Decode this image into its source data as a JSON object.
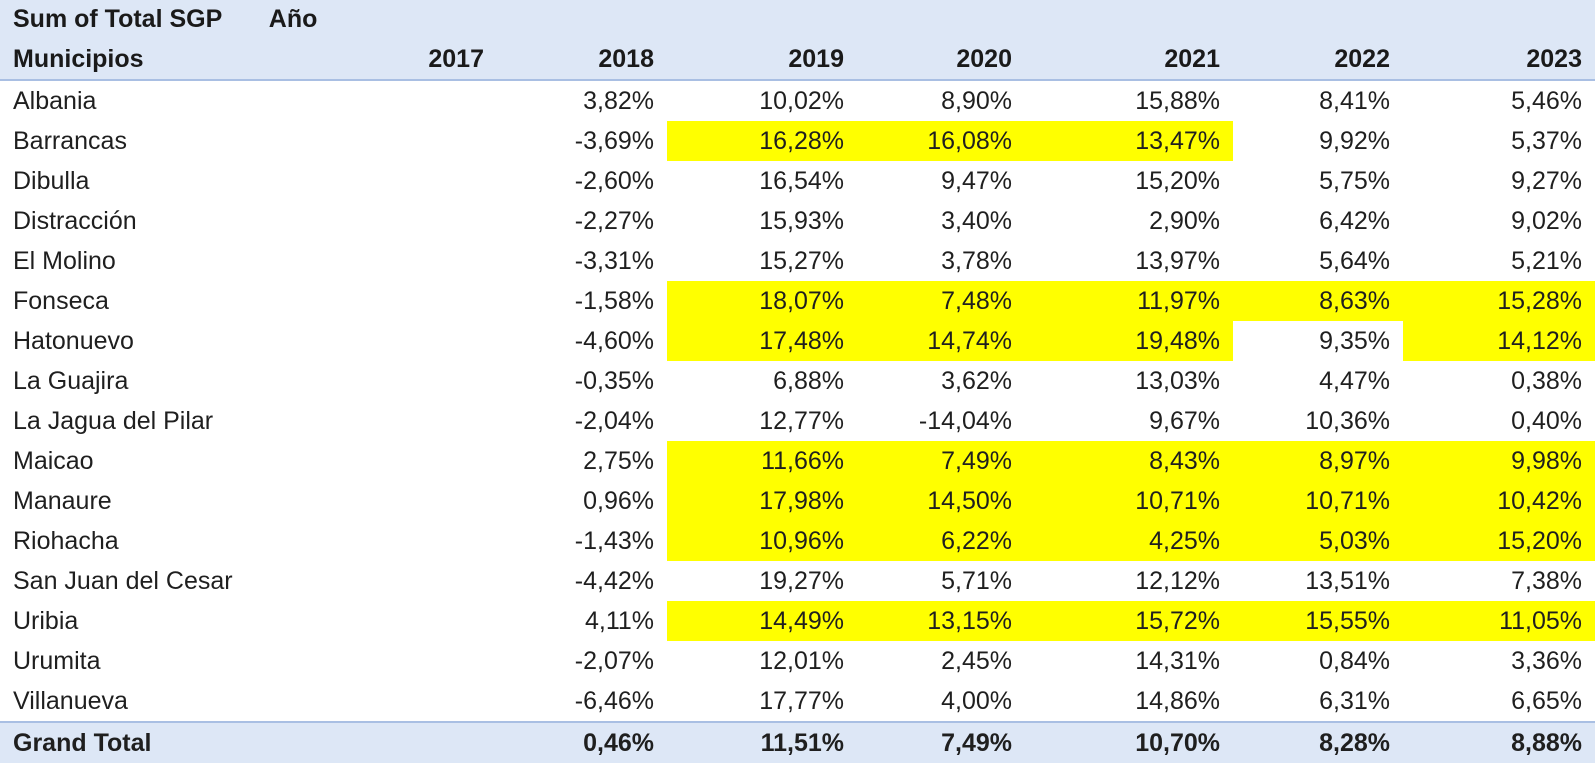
{
  "pivot": {
    "measure_label": "Sum of Total SGP",
    "column_field_label": "Año",
    "row_field_label": "Municipios",
    "highlight_color": "#ffff00",
    "header_color": "#dde7f6",
    "years": [
      "2017",
      "2018",
      "2019",
      "2020",
      "2021",
      "2022",
      "2023"
    ],
    "rows": [
      {
        "name": "Albania",
        "values": [
          "",
          "3,82%",
          "10,02%",
          "8,90%",
          "15,88%",
          "8,41%",
          "5,46%"
        ],
        "highlight": [
          false,
          false,
          false,
          false,
          false,
          false,
          false
        ]
      },
      {
        "name": "Barrancas",
        "values": [
          "",
          "-3,69%",
          "16,28%",
          "16,08%",
          "13,47%",
          "9,92%",
          "5,37%"
        ],
        "highlight": [
          false,
          false,
          true,
          true,
          true,
          false,
          false
        ]
      },
      {
        "name": "Dibulla",
        "values": [
          "",
          "-2,60%",
          "16,54%",
          "9,47%",
          "15,20%",
          "5,75%",
          "9,27%"
        ],
        "highlight": [
          false,
          false,
          false,
          false,
          false,
          false,
          false
        ]
      },
      {
        "name": "Distracción",
        "values": [
          "",
          "-2,27%",
          "15,93%",
          "3,40%",
          "2,90%",
          "6,42%",
          "9,02%"
        ],
        "highlight": [
          false,
          false,
          false,
          false,
          false,
          false,
          false
        ]
      },
      {
        "name": "El Molino",
        "values": [
          "",
          "-3,31%",
          "15,27%",
          "3,78%",
          "13,97%",
          "5,64%",
          "5,21%"
        ],
        "highlight": [
          false,
          false,
          false,
          false,
          false,
          false,
          false
        ]
      },
      {
        "name": "Fonseca",
        "values": [
          "",
          "-1,58%",
          "18,07%",
          "7,48%",
          "11,97%",
          "8,63%",
          "15,28%"
        ],
        "highlight": [
          false,
          false,
          true,
          true,
          true,
          true,
          true
        ]
      },
      {
        "name": "Hatonuevo",
        "values": [
          "",
          "-4,60%",
          "17,48%",
          "14,74%",
          "19,48%",
          "9,35%",
          "14,12%"
        ],
        "highlight": [
          false,
          false,
          true,
          true,
          true,
          false,
          true
        ]
      },
      {
        "name": "La Guajira",
        "values": [
          "",
          "-0,35%",
          "6,88%",
          "3,62%",
          "13,03%",
          "4,47%",
          "0,38%"
        ],
        "highlight": [
          false,
          false,
          false,
          false,
          false,
          false,
          false
        ]
      },
      {
        "name": "La Jagua del Pilar",
        "values": [
          "",
          "-2,04%",
          "12,77%",
          "-14,04%",
          "9,67%",
          "10,36%",
          "0,40%"
        ],
        "highlight": [
          false,
          false,
          false,
          false,
          false,
          false,
          false
        ]
      },
      {
        "name": "Maicao",
        "values": [
          "",
          "2,75%",
          "11,66%",
          "7,49%",
          "8,43%",
          "8,97%",
          "9,98%"
        ],
        "highlight": [
          false,
          false,
          true,
          true,
          true,
          true,
          true
        ]
      },
      {
        "name": "Manaure",
        "values": [
          "",
          "0,96%",
          "17,98%",
          "14,50%",
          "10,71%",
          "10,71%",
          "10,42%"
        ],
        "highlight": [
          false,
          false,
          true,
          true,
          true,
          true,
          true
        ]
      },
      {
        "name": "Riohacha",
        "values": [
          "",
          "-1,43%",
          "10,96%",
          "6,22%",
          "4,25%",
          "5,03%",
          "15,20%"
        ],
        "highlight": [
          false,
          false,
          true,
          true,
          true,
          true,
          true
        ]
      },
      {
        "name": "San Juan del Cesar",
        "values": [
          "",
          "-4,42%",
          "19,27%",
          "5,71%",
          "12,12%",
          "13,51%",
          "7,38%"
        ],
        "highlight": [
          false,
          false,
          false,
          false,
          false,
          false,
          false
        ]
      },
      {
        "name": "Uribia",
        "values": [
          "",
          "4,11%",
          "14,49%",
          "13,15%",
          "15,72%",
          "15,55%",
          "11,05%"
        ],
        "highlight": [
          false,
          false,
          true,
          true,
          true,
          true,
          true
        ]
      },
      {
        "name": "Urumita",
        "values": [
          "",
          "-2,07%",
          "12,01%",
          "2,45%",
          "14,31%",
          "0,84%",
          "3,36%"
        ],
        "highlight": [
          false,
          false,
          false,
          false,
          false,
          false,
          false
        ]
      },
      {
        "name": "Villanueva",
        "values": [
          "",
          "-6,46%",
          "17,77%",
          "4,00%",
          "14,86%",
          "6,31%",
          "6,65%"
        ],
        "highlight": [
          false,
          false,
          false,
          false,
          false,
          false,
          false
        ]
      }
    ],
    "grand_total": {
      "label": "Grand Total",
      "values": [
        "",
        "0,46%",
        "11,51%",
        "7,49%",
        "10,70%",
        "8,28%",
        "8,88%"
      ]
    }
  }
}
